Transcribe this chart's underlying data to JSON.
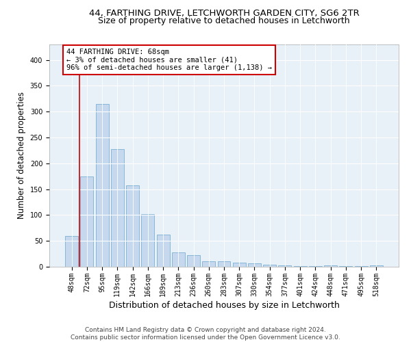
{
  "title_line1": "44, FARTHING DRIVE, LETCHWORTH GARDEN CITY, SG6 2TR",
  "title_line2": "Size of property relative to detached houses in Letchworth",
  "xlabel": "Distribution of detached houses by size in Letchworth",
  "ylabel": "Number of detached properties",
  "categories": [
    "48sqm",
    "72sqm",
    "95sqm",
    "119sqm",
    "142sqm",
    "166sqm",
    "189sqm",
    "213sqm",
    "236sqm",
    "260sqm",
    "283sqm",
    "307sqm",
    "330sqm",
    "354sqm",
    "377sqm",
    "401sqm",
    "424sqm",
    "448sqm",
    "471sqm",
    "495sqm",
    "518sqm"
  ],
  "values": [
    60,
    175,
    315,
    228,
    157,
    102,
    62,
    28,
    22,
    10,
    10,
    8,
    6,
    4,
    2,
    1,
    1,
    3,
    1,
    1,
    2
  ],
  "bar_color": "#c5d8ed",
  "bar_edge_color": "#7bafd4",
  "highlight_color": "#cc0000",
  "annotation_text": "44 FARTHING DRIVE: 68sqm\n← 3% of detached houses are smaller (41)\n96% of semi-detached houses are larger (1,138) →",
  "annotation_box_color": "#ffffff",
  "annotation_box_edge_color": "#cc0000",
  "ylim": [
    0,
    430
  ],
  "yticks": [
    0,
    50,
    100,
    150,
    200,
    250,
    300,
    350,
    400
  ],
  "background_color": "#e8f0f8",
  "footer_line1": "Contains HM Land Registry data © Crown copyright and database right 2024.",
  "footer_line2": "Contains public sector information licensed under the Open Government Licence v3.0.",
  "title_fontsize": 9.5,
  "subtitle_fontsize": 9,
  "axis_label_fontsize": 8.5,
  "tick_fontsize": 7,
  "annotation_fontsize": 7.5,
  "footer_fontsize": 6.5
}
